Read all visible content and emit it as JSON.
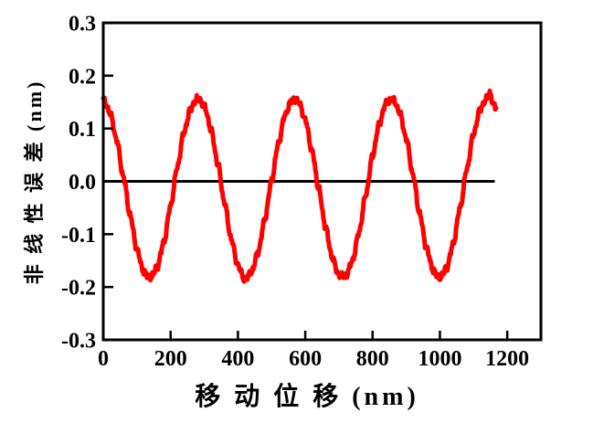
{
  "chart_data": {
    "type": "line",
    "title": "",
    "xlabel": "移 动 位 移  (nm)",
    "ylabel": "非 线 性 误 差  (nm)",
    "xlim": [
      0,
      1300
    ],
    "ylim": [
      -0.3,
      0.3
    ],
    "x_ticks": [
      0,
      200,
      400,
      600,
      800,
      1000,
      1200
    ],
    "y_tick_labels": [
      "0.3",
      "0.2",
      "0.1",
      "0.0",
      "-0.1",
      "-0.2",
      "-0.3"
    ],
    "y_tick_values": [
      0.3,
      0.2,
      0.1,
      0.0,
      -0.1,
      -0.2,
      -0.3
    ],
    "grid": false,
    "legend": null,
    "line_color": "#ff0000",
    "axis_color": "#000000",
    "background_color": "#ffffff",
    "zero_line": {
      "y": 0.0,
      "from_x": 0,
      "to_x": 1163
    },
    "series": [
      {
        "name": "nonlinearity-error",
        "approx_period_nm": 287,
        "points": [
          [
            0,
            0.155
          ],
          [
            20,
            0.13
          ],
          [
            40,
            0.078
          ],
          [
            60,
            0.008
          ],
          [
            80,
            -0.065
          ],
          [
            100,
            -0.129
          ],
          [
            120,
            -0.171
          ],
          [
            140,
            -0.183
          ],
          [
            160,
            -0.163
          ],
          [
            180,
            -0.115
          ],
          [
            200,
            -0.047
          ],
          [
            220,
            0.027
          ],
          [
            240,
            0.093
          ],
          [
            260,
            0.139
          ],
          [
            280,
            0.157
          ],
          [
            300,
            0.143
          ],
          [
            320,
            0.099
          ],
          [
            340,
            0.034
          ],
          [
            360,
            -0.04
          ],
          [
            380,
            -0.109
          ],
          [
            400,
            -0.159
          ],
          [
            420,
            -0.186
          ],
          [
            440,
            -0.173
          ],
          [
            460,
            -0.134
          ],
          [
            480,
            -0.072
          ],
          [
            500,
            0.001
          ],
          [
            520,
            0.071
          ],
          [
            540,
            0.126
          ],
          [
            560,
            0.154
          ],
          [
            580,
            0.151
          ],
          [
            600,
            0.117
          ],
          [
            620,
            0.058
          ],
          [
            640,
            -0.014
          ],
          [
            660,
            -0.086
          ],
          [
            680,
            -0.144
          ],
          [
            700,
            -0.178
          ],
          [
            720,
            -0.18
          ],
          [
            740,
            -0.151
          ],
          [
            760,
            -0.096
          ],
          [
            780,
            -0.025
          ],
          [
            800,
            0.048
          ],
          [
            820,
            0.11
          ],
          [
            840,
            0.148
          ],
          [
            860,
            0.156
          ],
          [
            880,
            0.132
          ],
          [
            900,
            0.081
          ],
          [
            920,
            0.012
          ],
          [
            940,
            -0.062
          ],
          [
            960,
            -0.126
          ],
          [
            980,
            -0.169
          ],
          [
            1000,
            -0.183
          ],
          [
            1020,
            -0.164
          ],
          [
            1040,
            -0.117
          ],
          [
            1060,
            -0.05
          ],
          [
            1080,
            0.023
          ],
          [
            1100,
            0.09
          ],
          [
            1120,
            0.138
          ],
          [
            1140,
            0.157
          ],
          [
            1148,
            0.166
          ],
          [
            1160,
            0.144
          ],
          [
            1167,
            0.139
          ]
        ]
      }
    ]
  }
}
